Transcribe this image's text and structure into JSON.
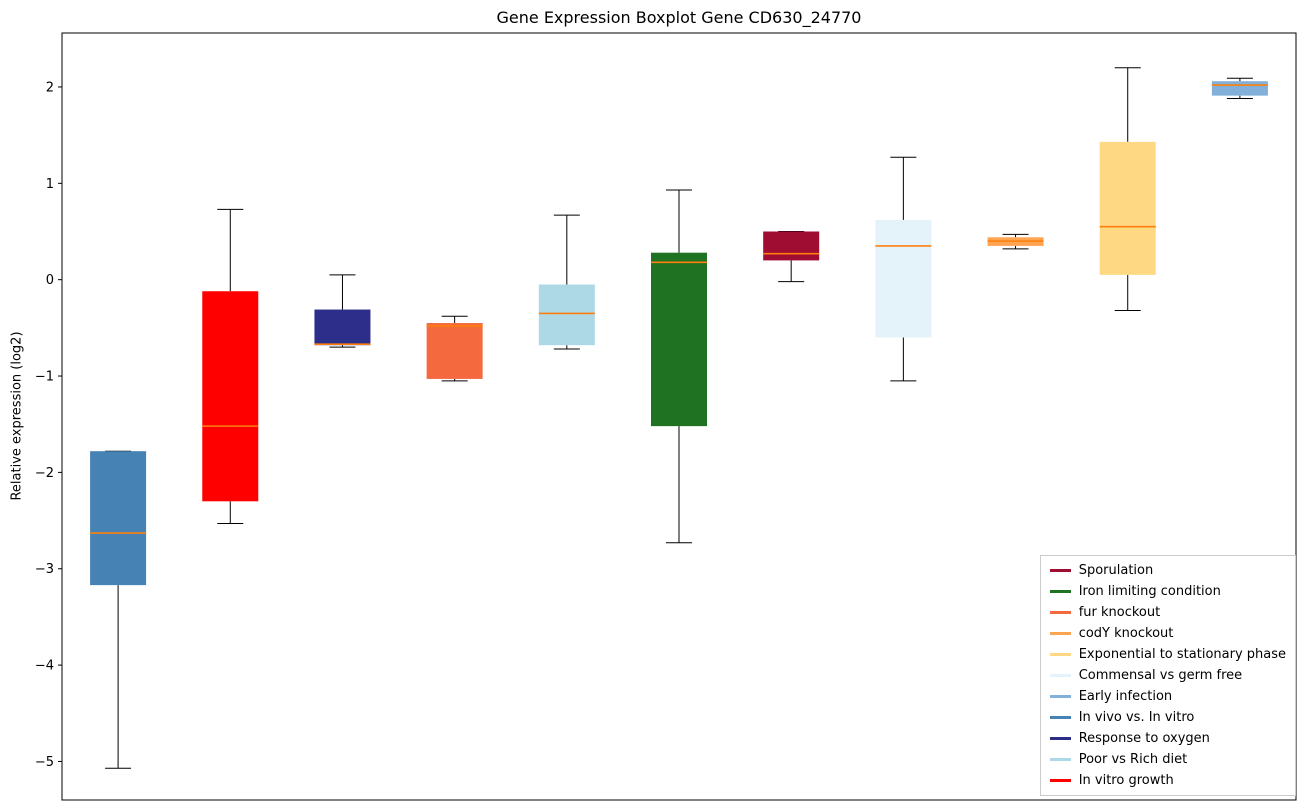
{
  "chart_data": {
    "type": "boxplot",
    "title": "Gene Expression Boxplot Gene CD630_24770",
    "ylabel": "Relative expression (log2)",
    "ylim": [
      -5.4,
      2.56
    ],
    "yticks": [
      -5,
      -4,
      -3,
      -2,
      -1,
      0,
      1,
      2
    ],
    "grid": false,
    "median_color": "#ff7f0e",
    "legend_position": "lower right",
    "series": [
      {
        "name": "In vivo vs. In vitro",
        "color": "#4682b4",
        "whislo": -5.07,
        "q1": -3.17,
        "med": -2.63,
        "q3": -1.78,
        "whishi": -1.78
      },
      {
        "name": "In vitro growth",
        "color": "#ff0000",
        "whislo": -2.53,
        "q1": -2.3,
        "med": -1.52,
        "q3": -0.12,
        "whishi": 0.73
      },
      {
        "name": "Response to oxygen",
        "color": "#2d2d8a",
        "whislo": -0.7,
        "q1": -0.68,
        "med": -0.67,
        "q3": -0.31,
        "whishi": 0.05
      },
      {
        "name": "fur knockout",
        "color": "#f4693e",
        "whislo": -1.05,
        "q1": -1.03,
        "med": -0.48,
        "q3": -0.45,
        "whishi": -0.38
      },
      {
        "name": "Poor vs Rich diet",
        "color": "#add8e6",
        "whislo": -0.72,
        "q1": -0.68,
        "med": -0.35,
        "q3": -0.05,
        "whishi": 0.67
      },
      {
        "name": "Iron limiting condition",
        "color": "#1e7222",
        "whislo": -2.73,
        "q1": -1.52,
        "med": 0.18,
        "q3": 0.28,
        "whishi": 0.93
      },
      {
        "name": "Sporulation",
        "color": "#a00d32",
        "whislo": -0.02,
        "q1": 0.2,
        "med": 0.27,
        "q3": 0.5,
        "whishi": 0.5
      },
      {
        "name": "Commensal vs germ free",
        "color": "#e4f3f9",
        "whislo": -1.05,
        "q1": -0.6,
        "med": 0.35,
        "q3": 0.62,
        "whishi": 1.27
      },
      {
        "name": "codY knockout",
        "color": "#ffa552",
        "whislo": 0.32,
        "q1": 0.35,
        "med": 0.4,
        "q3": 0.44,
        "whishi": 0.47
      },
      {
        "name": "Exponential to stationary phase",
        "color": "#ffd884",
        "whislo": -0.32,
        "q1": 0.05,
        "med": 0.55,
        "q3": 1.43,
        "whishi": 2.2
      },
      {
        "name": "Early infection",
        "color": "#82b0d8",
        "whislo": 1.88,
        "q1": 1.91,
        "med": 2.02,
        "q3": 2.06,
        "whishi": 2.09
      }
    ],
    "legend": [
      {
        "label": "Sporulation",
        "color": "#a00d32"
      },
      {
        "label": "Iron limiting condition",
        "color": "#1e7222"
      },
      {
        "label": "fur knockout",
        "color": "#f4693e"
      },
      {
        "label": "codY knockout",
        "color": "#ffa552"
      },
      {
        "label": "Exponential to stationary phase",
        "color": "#ffd884"
      },
      {
        "label": "Commensal vs germ free",
        "color": "#e4f3f9"
      },
      {
        "label": "Early infection",
        "color": "#82b0d8"
      },
      {
        "label": "In vivo vs. In vitro",
        "color": "#4682b4"
      },
      {
        "label": "Response to oxygen",
        "color": "#2d2d8a"
      },
      {
        "label": "Poor vs Rich diet",
        "color": "#add8e6"
      },
      {
        "label": "In vitro growth",
        "color": "#ff0000"
      }
    ]
  }
}
